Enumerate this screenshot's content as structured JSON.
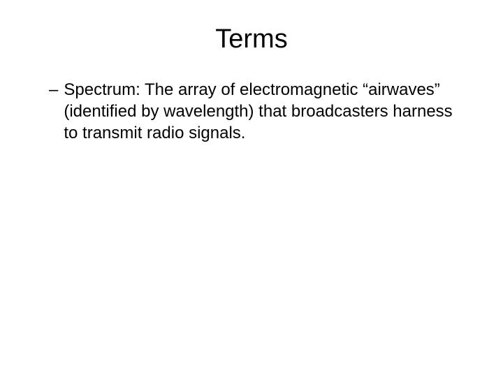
{
  "slide": {
    "title": "Terms",
    "title_fontsize": 38,
    "background_color": "#ffffff",
    "text_color": "#000000",
    "body_fontsize": 24,
    "bullets": [
      {
        "dash": "–",
        "text": "Spectrum: The array of electromagnetic “airwaves” (identified by wavelength) that broadcasters harness to transmit radio signals."
      }
    ]
  }
}
